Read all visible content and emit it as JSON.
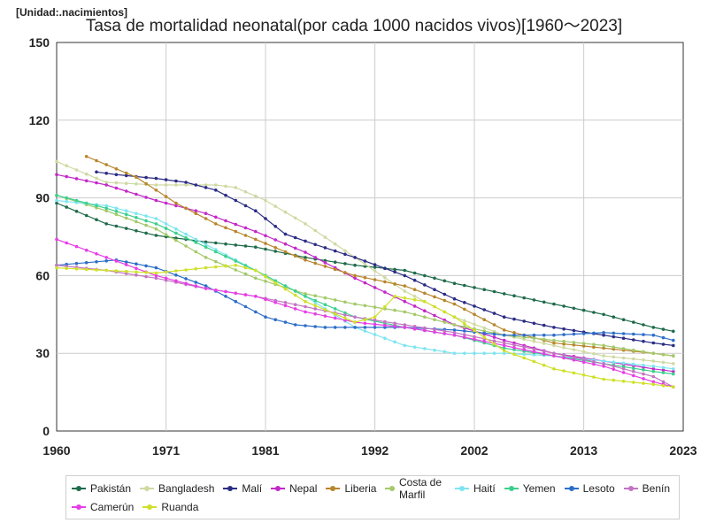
{
  "unit_label": "[Unidad:.nacimientos]",
  "chart_data": {
    "type": "line",
    "title": "Tasa de mortalidad neonatal(por cada 1000 nacidos vivos)[1960～2023]",
    "xlabel": "",
    "ylabel": "",
    "xlim": [
      1960,
      2023
    ],
    "ylim": [
      0,
      150
    ],
    "x_ticks": [
      1960,
      1971,
      1981,
      1992,
      2002,
      2013,
      2023
    ],
    "y_ticks": [
      0,
      30,
      60,
      90,
      120,
      150
    ],
    "grid": true,
    "legend_position": "bottom",
    "series": [
      {
        "name": "Pakistán",
        "color": "#1f6b4a",
        "points": [
          [
            1960,
            88
          ],
          [
            1965,
            80
          ],
          [
            1970,
            75.5
          ],
          [
            1975,
            73
          ],
          [
            1980,
            71
          ],
          [
            1985,
            67
          ],
          [
            1990,
            64
          ],
          [
            1995,
            62
          ],
          [
            2000,
            57
          ],
          [
            2005,
            53
          ],
          [
            2010,
            49
          ],
          [
            2015,
            45
          ],
          [
            2020,
            40
          ],
          [
            2022,
            38.5
          ]
        ]
      },
      {
        "name": "Bangladesh",
        "color": "#cfd9a2",
        "points": [
          [
            1960,
            104
          ],
          [
            1965,
            96
          ],
          [
            1970,
            95
          ],
          [
            1972,
            95
          ],
          [
            1976,
            95
          ],
          [
            1978,
            94
          ],
          [
            1981,
            89
          ],
          [
            1985,
            80
          ],
          [
            1990,
            67
          ],
          [
            1995,
            54
          ],
          [
            2000,
            44
          ],
          [
            2005,
            37
          ],
          [
            2010,
            33
          ],
          [
            2015,
            29
          ],
          [
            2020,
            27
          ],
          [
            2022,
            26
          ]
        ]
      },
      {
        "name": "Malí",
        "color": "#2b2c84",
        "points": [
          [
            1964,
            100
          ],
          [
            1966,
            99
          ],
          [
            1970,
            97.5
          ],
          [
            1973,
            96
          ],
          [
            1976,
            93
          ],
          [
            1980,
            85
          ],
          [
            1983,
            76
          ],
          [
            1986,
            72
          ],
          [
            1990,
            67
          ],
          [
            1995,
            60
          ],
          [
            2000,
            51
          ],
          [
            2005,
            44
          ],
          [
            2010,
            40
          ],
          [
            2015,
            37
          ],
          [
            2020,
            34
          ],
          [
            2022,
            33
          ]
        ]
      },
      {
        "name": "Nepal",
        "color": "#c328c8",
        "points": [
          [
            1960,
            99
          ],
          [
            1965,
            95
          ],
          [
            1970,
            89
          ],
          [
            1975,
            84
          ],
          [
            1980,
            77
          ],
          [
            1985,
            69
          ],
          [
            1990,
            59
          ],
          [
            1995,
            50
          ],
          [
            2000,
            41
          ],
          [
            2005,
            35
          ],
          [
            2010,
            30
          ],
          [
            2015,
            27
          ],
          [
            2020,
            24
          ],
          [
            2022,
            23
          ]
        ]
      },
      {
        "name": "Liberia",
        "color": "#b8862c",
        "points": [
          [
            1963,
            106
          ],
          [
            1968,
            98
          ],
          [
            1972,
            88
          ],
          [
            1976,
            80
          ],
          [
            1980,
            74
          ],
          [
            1985,
            66
          ],
          [
            1990,
            60
          ],
          [
            1995,
            56
          ],
          [
            2000,
            49
          ],
          [
            2005,
            39
          ],
          [
            2010,
            34
          ],
          [
            2015,
            32
          ],
          [
            2020,
            30
          ],
          [
            2022,
            29
          ]
        ]
      },
      {
        "name": "Costa de Marfil",
        "color": "#a4c96a",
        "points": [
          [
            1960,
            91
          ],
          [
            1965,
            85
          ],
          [
            1970,
            78
          ],
          [
            1975,
            67
          ],
          [
            1980,
            59
          ],
          [
            1985,
            53
          ],
          [
            1990,
            49
          ],
          [
            1995,
            46
          ],
          [
            2000,
            41
          ],
          [
            2005,
            37
          ],
          [
            2010,
            35
          ],
          [
            2015,
            33
          ],
          [
            2020,
            30
          ],
          [
            2022,
            29
          ]
        ]
      },
      {
        "name": "Haití",
        "color": "#7ee5f0",
        "points": [
          [
            1960,
            89
          ],
          [
            1965,
            87
          ],
          [
            1970,
            82
          ],
          [
            1975,
            72
          ],
          [
            1980,
            62
          ],
          [
            1985,
            52
          ],
          [
            1990,
            40
          ],
          [
            1995,
            33
          ],
          [
            2000,
            30
          ],
          [
            2005,
            30
          ],
          [
            2010,
            29
          ],
          [
            2015,
            27
          ],
          [
            2020,
            25
          ],
          [
            2022,
            24
          ]
        ]
      },
      {
        "name": "Yemen",
        "color": "#3ccf8d",
        "points": [
          [
            1960,
            91
          ],
          [
            1965,
            86
          ],
          [
            1970,
            80
          ],
          [
            1975,
            71
          ],
          [
            1980,
            62
          ],
          [
            1985,
            52
          ],
          [
            1990,
            44
          ],
          [
            1995,
            40
          ],
          [
            2000,
            37
          ],
          [
            2005,
            32
          ],
          [
            2010,
            29
          ],
          [
            2015,
            26
          ],
          [
            2020,
            23
          ],
          [
            2022,
            22
          ]
        ]
      },
      {
        "name": "Lesoto",
        "color": "#2d6ec9",
        "points": [
          [
            1960,
            64
          ],
          [
            1963,
            65
          ],
          [
            1966,
            66
          ],
          [
            1970,
            63
          ],
          [
            1975,
            56
          ],
          [
            1978,
            50
          ],
          [
            1981,
            44
          ],
          [
            1984,
            41
          ],
          [
            1987,
            40
          ],
          [
            1990,
            40
          ],
          [
            1995,
            40
          ],
          [
            2000,
            39
          ],
          [
            2005,
            37
          ],
          [
            2010,
            37
          ],
          [
            2015,
            38
          ],
          [
            2020,
            37
          ],
          [
            2022,
            35
          ]
        ]
      },
      {
        "name": "Benín",
        "color": "#c275c2",
        "points": [
          [
            1960,
            64
          ],
          [
            1965,
            62
          ],
          [
            1970,
            59
          ],
          [
            1975,
            55
          ],
          [
            1980,
            52
          ],
          [
            1985,
            48
          ],
          [
            1990,
            44
          ],
          [
            1995,
            41
          ],
          [
            2000,
            38
          ],
          [
            2005,
            34
          ],
          [
            2010,
            30
          ],
          [
            2015,
            26
          ],
          [
            2020,
            21
          ],
          [
            2022,
            17
          ]
        ]
      },
      {
        "name": "Camerún",
        "color": "#e63ee6",
        "points": [
          [
            1960,
            74
          ],
          [
            1965,
            67
          ],
          [
            1970,
            60
          ],
          [
            1975,
            55
          ],
          [
            1980,
            52
          ],
          [
            1985,
            46
          ],
          [
            1990,
            42
          ],
          [
            1995,
            40
          ],
          [
            2000,
            37
          ],
          [
            2005,
            33
          ],
          [
            2010,
            29
          ],
          [
            2015,
            25
          ],
          [
            2020,
            19
          ],
          [
            2022,
            17
          ]
        ]
      },
      {
        "name": "Ruanda",
        "color": "#cfe02a",
        "points": [
          [
            1960,
            63
          ],
          [
            1965,
            62
          ],
          [
            1970,
            61
          ],
          [
            1975,
            63
          ],
          [
            1978,
            64
          ],
          [
            1980,
            62
          ],
          [
            1985,
            50
          ],
          [
            1990,
            42
          ],
          [
            1992,
            44
          ],
          [
            1994,
            52
          ],
          [
            1997,
            50
          ],
          [
            2000,
            44
          ],
          [
            2005,
            31
          ],
          [
            2010,
            24
          ],
          [
            2015,
            20
          ],
          [
            2020,
            18
          ],
          [
            2022,
            17
          ]
        ]
      }
    ]
  }
}
